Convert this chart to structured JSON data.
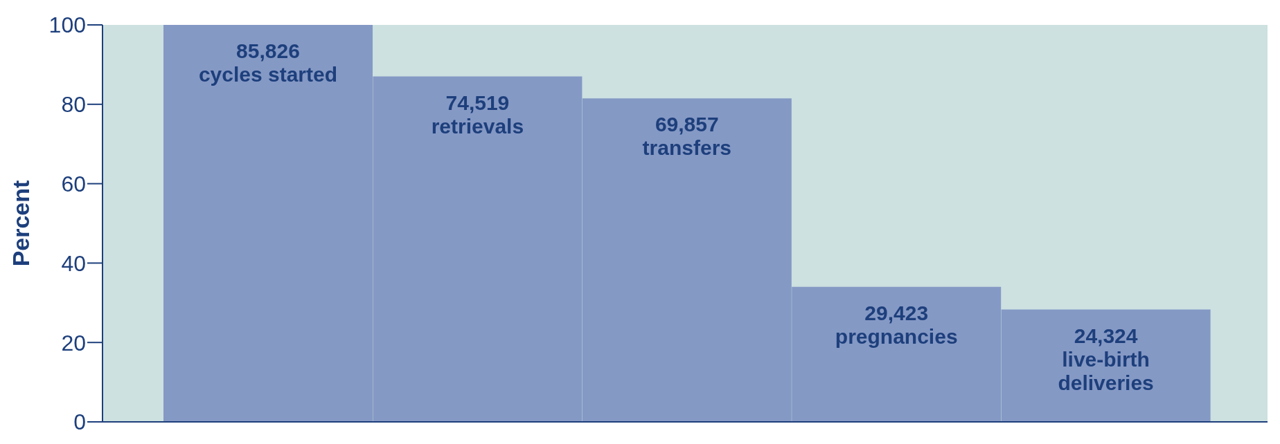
{
  "chart_data": {
    "type": "bar",
    "ylabel": "Percent",
    "categories": [
      null,
      null,
      null,
      null,
      null
    ],
    "values": [
      100,
      87,
      81.5,
      34,
      28.3
    ],
    "annotations": [
      "85,826\ncycles started",
      "74,519\nretrievals",
      "69,857\ntransfers",
      "29,423\npregnancies",
      "24,324\nlive-birth\ndeliveries"
    ],
    "color": "#8599c5",
    "ylim": [
      0,
      100
    ],
    "yticks": [
      0,
      20,
      40,
      60,
      80,
      100
    ],
    "grid": false,
    "legend": false,
    "tick_labels": "y"
  }
}
